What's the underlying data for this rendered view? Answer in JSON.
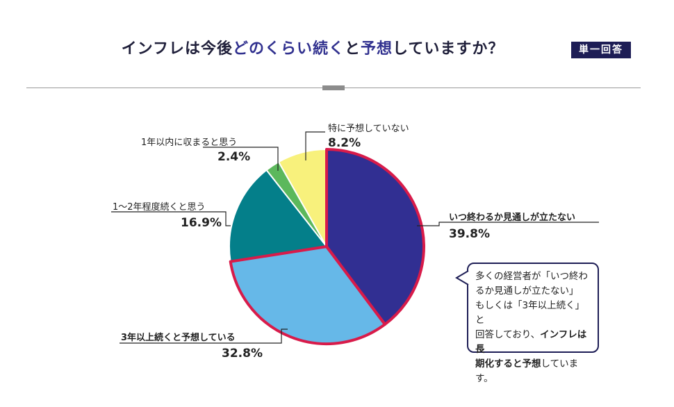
{
  "title_parts": {
    "a": "インフレは今後",
    "b": "どのくらい続く",
    "c": "と",
    "d": "予想",
    "e": "していますか？"
  },
  "badge": "単一回答",
  "chart_data": {
    "type": "pie",
    "title": "インフレは今後どのくらい続くと予想していますか？",
    "start": "12 o'clock, clockwise",
    "slices": [
      {
        "label": "いつ終わるか見通しが立たない",
        "value": 39.8,
        "display": "39.8%",
        "color": "#312f92",
        "highlight": true
      },
      {
        "label": "3年以上続くと予想している",
        "value": 32.8,
        "display": "32.8%",
        "color": "#66b8e8",
        "highlight": true
      },
      {
        "label": "1〜2年程度続くと思う",
        "value": 16.9,
        "display": "16.9%",
        "color": "#047f8a",
        "highlight": false
      },
      {
        "label": "1年以内に収まると思う",
        "value": 2.4,
        "display": "2.4%",
        "color": "#5cb85c",
        "highlight": false
      },
      {
        "label": "特に予想していない",
        "value": 8.2,
        "display": "8.2%",
        "color": "#f8f17c",
        "highlight": false
      }
    ],
    "highlight_color": "#d81b4a"
  },
  "callout": {
    "l1": "多くの経営者が「いつ終わ",
    "l2": "るか見通しが立たない」",
    "l3": "もしくは「3年以上続く」と",
    "l4a": "回答しており、",
    "l4b": "インフレは長",
    "l5a": "期化すると予想",
    "l5b": "しています。"
  }
}
